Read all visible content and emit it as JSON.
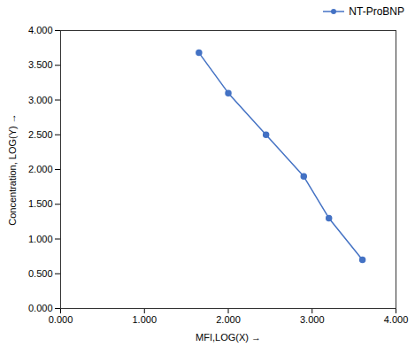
{
  "chart_data": {
    "type": "line",
    "x": [
      1.65,
      2.0,
      2.45,
      2.9,
      3.2,
      3.6
    ],
    "series": [
      {
        "name": "NT-ProBNP",
        "color": "#4472C4",
        "marker": "circle",
        "values": [
          3.68,
          3.1,
          2.5,
          1.9,
          1.3,
          0.7
        ]
      }
    ],
    "xlabel": "MFI,LOG(X)",
    "ylabel": "Concentration, LOG(Y)",
    "xlim": [
      0.0,
      4.0
    ],
    "ylim": [
      0.0,
      4.0
    ],
    "xticks": [
      {
        "value": 0.0,
        "label": "0.000"
      },
      {
        "value": 1.0,
        "label": "1.000"
      },
      {
        "value": 2.0,
        "label": "2.000"
      },
      {
        "value": 3.0,
        "label": "3.000"
      },
      {
        "value": 4.0,
        "label": "4.000"
      }
    ],
    "yticks": [
      {
        "value": 0.0,
        "label": "0.000"
      },
      {
        "value": 0.5,
        "label": "0.500"
      },
      {
        "value": 1.0,
        "label": "1.000"
      },
      {
        "value": 1.5,
        "label": "1.500"
      },
      {
        "value": 2.0,
        "label": "2.000"
      },
      {
        "value": 2.5,
        "label": "2.500"
      },
      {
        "value": 3.0,
        "label": "3.000"
      },
      {
        "value": 3.5,
        "label": "3.500"
      },
      {
        "value": 4.0,
        "label": "4.000"
      }
    ],
    "legend": "upper right"
  }
}
